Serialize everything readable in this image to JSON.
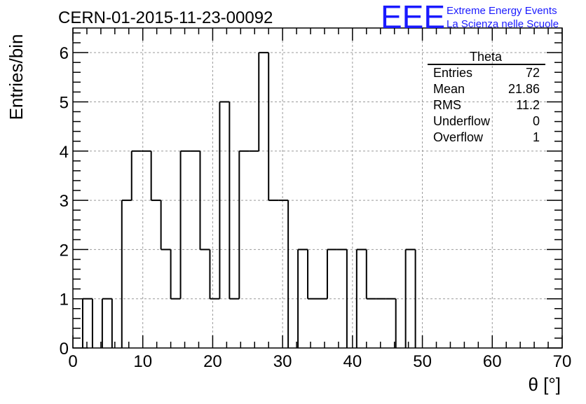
{
  "header": {
    "run_title": "CERN-01-2015-11-23-00092",
    "logo_text": "EEE",
    "logo_line1": "Extreme Energy Events",
    "logo_line2": "La Scienza nelle Scuole",
    "logo_color": "#1a1aff"
  },
  "stats_box": {
    "title": "Theta",
    "rows": [
      {
        "label": "Entries",
        "value": "72"
      },
      {
        "label": "Mean",
        "value": "21.86"
      },
      {
        "label": "RMS",
        "value": "11.2"
      },
      {
        "label": "Underflow",
        "value": "0"
      },
      {
        "label": "Overflow",
        "value": "1"
      }
    ]
  },
  "chart_data": {
    "type": "bar",
    "title": "CERN-01-2015-11-23-00092",
    "xlabel": "θ [°]",
    "ylabel": "Entries/bin",
    "xlim": [
      0,
      70
    ],
    "ylim": [
      0,
      6.5
    ],
    "bin_width": 1.4,
    "xticks": [
      0,
      10,
      20,
      30,
      40,
      50,
      60,
      70
    ],
    "yticks": [
      0,
      1,
      2,
      3,
      4,
      5,
      6
    ],
    "grid": true,
    "legend": "top-right",
    "values": [
      0,
      1,
      0,
      1,
      0,
      3,
      4,
      4,
      3,
      2,
      1,
      4,
      4,
      2,
      1,
      5,
      1,
      4,
      4,
      6,
      3,
      3,
      0,
      2,
      1,
      1,
      2,
      2,
      0,
      2,
      1,
      1,
      1,
      0,
      2,
      0,
      0,
      0,
      0,
      0,
      0,
      0,
      0,
      0,
      0,
      0,
      0,
      0,
      0,
      0
    ]
  }
}
